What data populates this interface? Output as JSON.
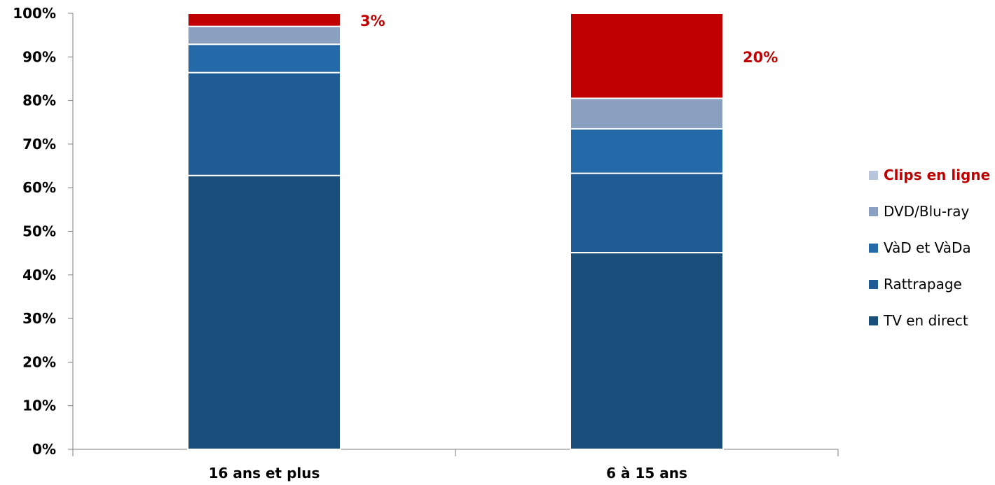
{
  "chart_data": {
    "type": "bar",
    "stacked": true,
    "categories": [
      "16 ans et plus",
      "6 à 15 ans"
    ],
    "series": [
      {
        "name": "TV en direct",
        "values": [
          62.8,
          45.1
        ],
        "color": "#1a4e7a"
      },
      {
        "name": "Rattrapage",
        "values": [
          23.6,
          18.2
        ],
        "color": "#1f5c95"
      },
      {
        "name": "VàD et VàDa",
        "values": [
          6.5,
          10.2
        ],
        "color": "#256aa8"
      },
      {
        "name": "DVD/Blu-ray",
        "values": [
          4.1,
          7.0
        ],
        "color": "#8aa0c1"
      },
      {
        "name": "Clips en ligne",
        "values": [
          3.0,
          19.5
        ],
        "color": "#c00000",
        "legend_color": "#b7c6dc",
        "highlight": true
      }
    ],
    "data_labels": [
      {
        "category": "16 ans et plus",
        "series": "Clips en ligne",
        "text": "3%"
      },
      {
        "category": "6 à 15 ans",
        "series": "Clips en ligne",
        "text": "20%"
      }
    ],
    "y_ticks": [
      "0%",
      "10%",
      "20%",
      "30%",
      "40%",
      "50%",
      "60%",
      "70%",
      "80%",
      "90%",
      "100%"
    ],
    "ylim": [
      0,
      100
    ],
    "grid": false,
    "legend_position": "right",
    "legend_order": [
      "Clips en ligne",
      "DVD/Blu-ray",
      "VàD et VàDa",
      "Rattrapage",
      "TV en direct"
    ],
    "title": "",
    "xlabel": "",
    "ylabel": ""
  }
}
